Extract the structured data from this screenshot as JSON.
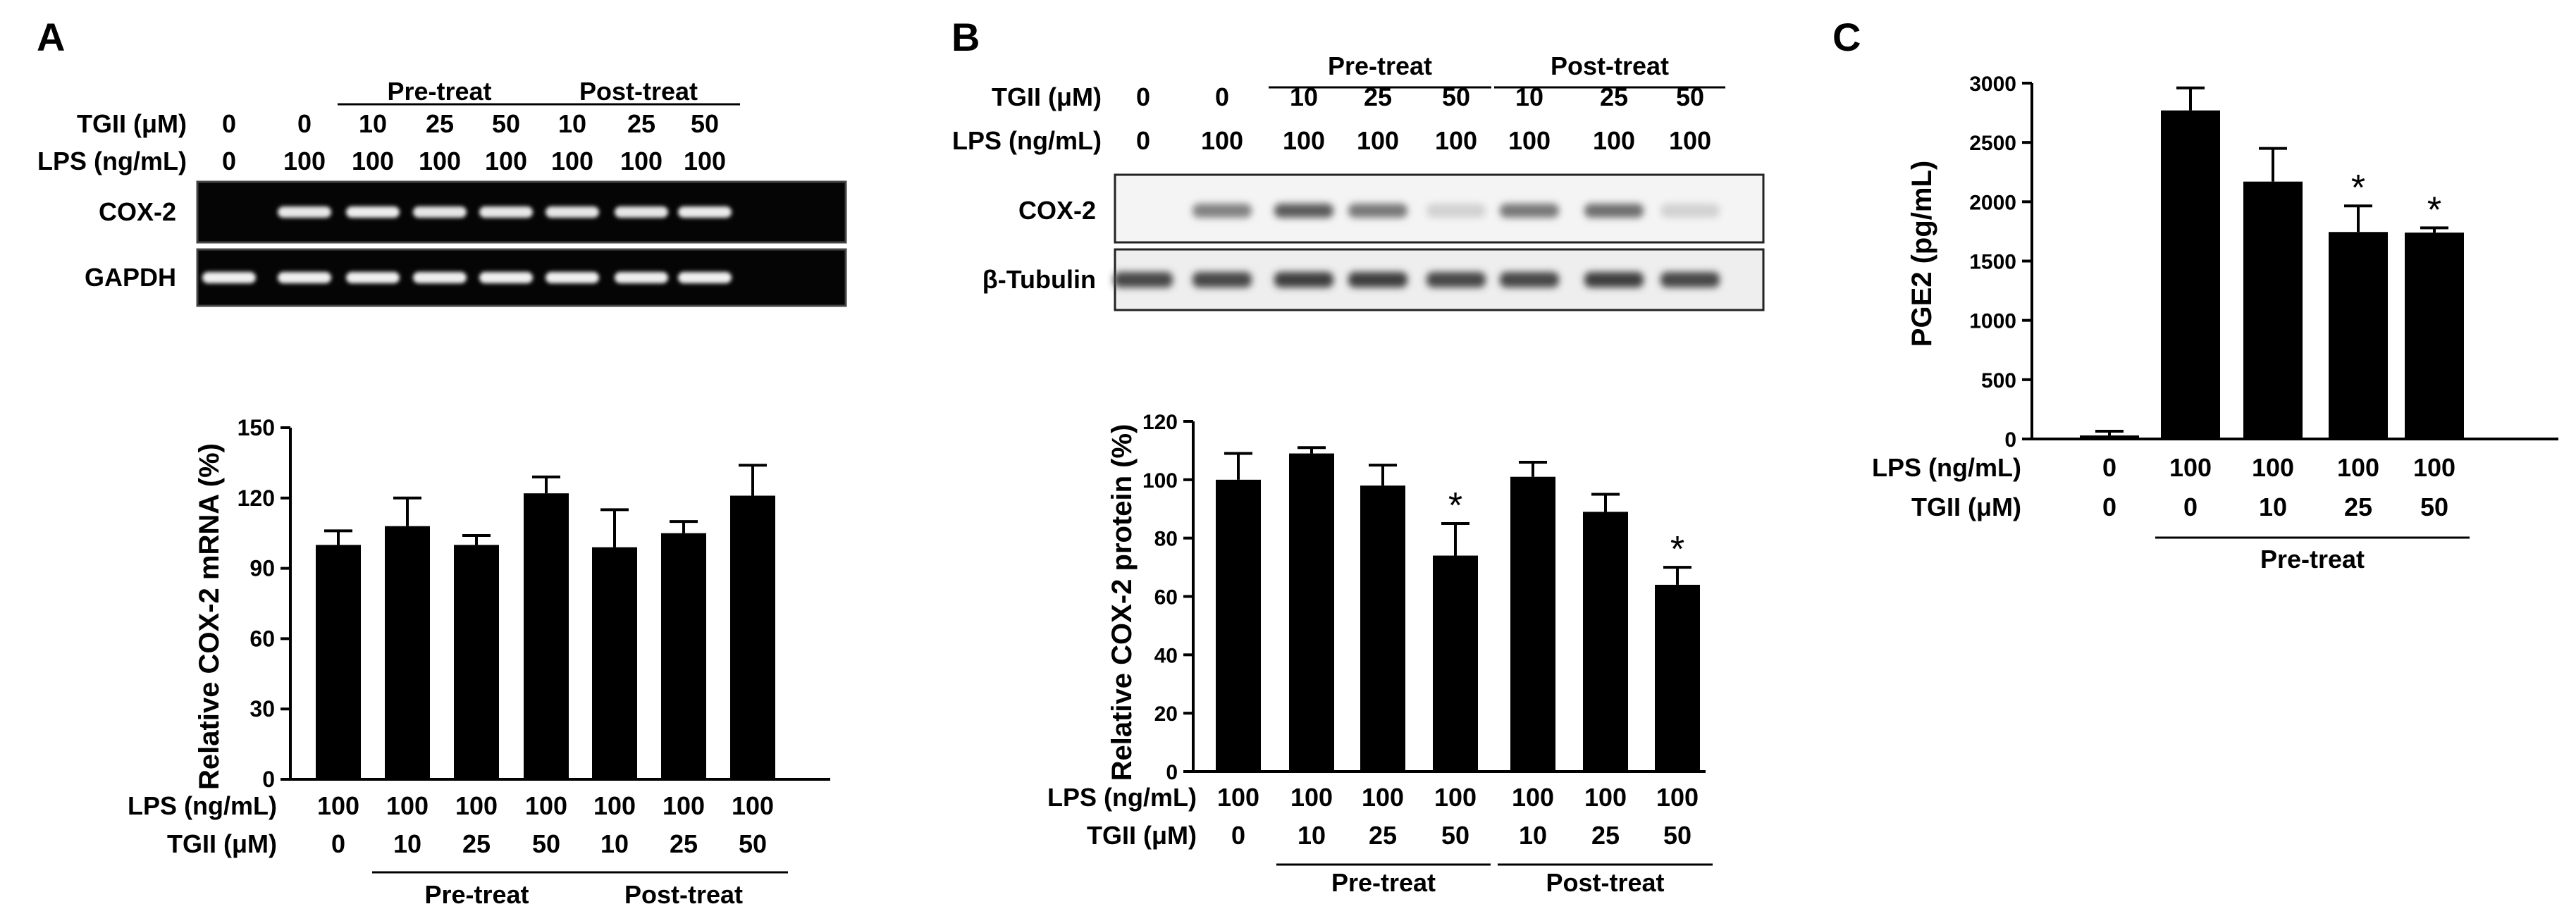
{
  "chart_data": [
    {
      "panel": "A",
      "type": "bar",
      "blots": {
        "header_rows": [
          {
            "label": "TGII (μM)",
            "values": [
              "0",
              "0",
              "10",
              "25",
              "50",
              "10",
              "25",
              "50"
            ]
          },
          {
            "label": "LPS (ng/mL)",
            "values": [
              "0",
              "100",
              "100",
              "100",
              "100",
              "100",
              "100",
              "100"
            ]
          }
        ],
        "groups": [
          {
            "label": "Pre-treat",
            "lanes": [
              2,
              4
            ]
          },
          {
            "label": "Post-treat",
            "lanes": [
              5,
              7
            ]
          }
        ],
        "bands": [
          {
            "label": "COX-2",
            "style": "gel",
            "intensity": [
              0,
              0.82,
              0.88,
              0.8,
              0.82,
              0.8,
              0.8,
              0.85
            ]
          },
          {
            "label": "GAPDH",
            "style": "gel",
            "intensity": [
              0.9,
              0.9,
              0.9,
              0.88,
              0.9,
              0.9,
              0.88,
              0.9
            ]
          }
        ]
      },
      "ylabel": "Relative COX-2 mRNA (%)",
      "ylim": [
        0,
        150
      ],
      "yticks": [
        0,
        30,
        60,
        90,
        120,
        150
      ],
      "values": [
        100,
        108,
        100,
        122,
        99,
        105,
        121
      ],
      "errors": [
        6,
        12,
        4,
        7,
        16,
        5,
        13
      ],
      "significant": [
        false,
        false,
        false,
        false,
        false,
        false,
        false
      ],
      "xrows": [
        {
          "label": "LPS (ng/mL)",
          "values": [
            "100",
            "100",
            "100",
            "100",
            "100",
            "100",
            "100"
          ]
        },
        {
          "label": "TGII (μM)",
          "values": [
            "0",
            "10",
            "25",
            "50",
            "10",
            "25",
            "50"
          ]
        }
      ],
      "groups": [
        {
          "label": "Pre-treat",
          "bars": [
            1,
            3
          ]
        },
        {
          "label": "Post-treat",
          "bars": [
            4,
            6
          ]
        }
      ],
      "grid": false,
      "color": "#000000"
    },
    {
      "panel": "B",
      "type": "bar",
      "blots": {
        "header_rows": [
          {
            "label": "TGII (μM)",
            "values": [
              "0",
              "0",
              "10",
              "25",
              "50",
              "10",
              "25",
              "50"
            ]
          },
          {
            "label": "LPS (ng/mL)",
            "values": [
              "0",
              "100",
              "100",
              "100",
              "100",
              "100",
              "100",
              "100"
            ]
          }
        ],
        "groups": [
          {
            "label": "Pre-treat",
            "lanes": [
              2,
              4
            ]
          },
          {
            "label": "Post-treat",
            "lanes": [
              5,
              7
            ]
          }
        ],
        "bands": [
          {
            "label": "COX-2",
            "style": "western",
            "intensity": [
              0,
              0.55,
              0.75,
              0.6,
              0.15,
              0.6,
              0.65,
              0.15
            ]
          },
          {
            "label": "β-Tubulin",
            "style": "western",
            "intensity": [
              0.85,
              0.85,
              0.9,
              0.9,
              0.85,
              0.85,
              0.9,
              0.85
            ]
          }
        ]
      },
      "ylabel": "Relative COX-2 protein (%)",
      "ylim": [
        0,
        120
      ],
      "yticks": [
        0,
        20,
        40,
        60,
        80,
        100,
        120
      ],
      "values": [
        100,
        109,
        98,
        74,
        101,
        89,
        64
      ],
      "errors": [
        9,
        2,
        7,
        11,
        5,
        6,
        6
      ],
      "significant": [
        false,
        false,
        false,
        true,
        false,
        false,
        true
      ],
      "xrows": [
        {
          "label": "LPS (ng/mL)",
          "values": [
            "100",
            "100",
            "100",
            "100",
            "100",
            "100",
            "100"
          ]
        },
        {
          "label": "TGII (μM)",
          "values": [
            "0",
            "10",
            "25",
            "50",
            "10",
            "25",
            "50"
          ]
        }
      ],
      "groups": [
        {
          "label": "Pre-treat",
          "bars": [
            1,
            3
          ]
        },
        {
          "label": "Post-treat",
          "bars": [
            4,
            6
          ]
        }
      ],
      "grid": false,
      "color": "#000000"
    },
    {
      "panel": "C",
      "type": "bar",
      "ylabel": "PGE2 (pg/mL)",
      "ylim": [
        0,
        3000
      ],
      "yticks": [
        0,
        500,
        1000,
        1500,
        2000,
        2500,
        3000
      ],
      "values": [
        30,
        2770,
        2170,
        1745,
        1740
      ],
      "errors": [
        35,
        190,
        280,
        220,
        40
      ],
      "significant": [
        false,
        false,
        false,
        true,
        true
      ],
      "xrows": [
        {
          "label": "LPS (ng/mL)",
          "values": [
            "0",
            "100",
            "100",
            "100",
            "100"
          ]
        },
        {
          "label": "TGII (μM)",
          "values": [
            "0",
            "0",
            "10",
            "25",
            "50"
          ]
        }
      ],
      "groups": [
        {
          "label": "Pre-treat",
          "bars": [
            1,
            4
          ]
        }
      ],
      "grid": false,
      "color": "#000000"
    }
  ]
}
